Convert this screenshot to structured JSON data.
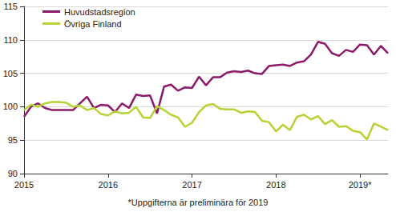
{
  "chart_data": {
    "type": "line",
    "subtitle": "*Uppgifterna är preliminära för 2019",
    "categories": [
      "2015",
      null,
      null,
      null,
      null,
      null,
      null,
      null,
      null,
      null,
      null,
      null,
      "2016",
      null,
      null,
      null,
      null,
      null,
      null,
      null,
      null,
      null,
      null,
      null,
      "2017",
      null,
      null,
      null,
      null,
      null,
      null,
      null,
      null,
      null,
      null,
      null,
      "2018",
      null,
      null,
      null,
      null,
      null,
      null,
      null,
      null,
      null,
      null,
      null,
      "2019*",
      null,
      null,
      null,
      null
    ],
    "series": [
      {
        "name": "Huvudstadsregion",
        "color": "#8b1a6b",
        "values": [
          98.5,
          100.0,
          100.5,
          99.8,
          99.5,
          99.5,
          99.5,
          99.5,
          100.5,
          101.5,
          99.8,
          100.3,
          100.2,
          99.2,
          100.5,
          99.8,
          101.8,
          101.6,
          101.7,
          99.0,
          103.0,
          103.3,
          102.4,
          102.9,
          102.8,
          104.5,
          103.2,
          104.4,
          104.4,
          105.1,
          105.3,
          105.2,
          105.4,
          105.0,
          104.9,
          106.1,
          106.2,
          106.3,
          106.1,
          106.6,
          106.8,
          107.8,
          109.7,
          109.4,
          108.0,
          107.6,
          108.5,
          108.2,
          109.3,
          109.2,
          107.8,
          109.1,
          108.0
        ]
      },
      {
        "name": "Övriga Finland",
        "color": "#b5d334",
        "values": [
          99.5,
          100.3,
          100.0,
          100.5,
          100.7,
          100.7,
          100.6,
          100.0,
          100.2,
          99.5,
          99.8,
          98.9,
          98.7,
          99.3,
          99.0,
          99.1,
          100.0,
          98.4,
          98.3,
          100.1,
          99.5,
          98.8,
          98.4,
          97.0,
          97.6,
          99.2,
          100.2,
          100.4,
          99.7,
          99.6,
          99.6,
          99.1,
          99.3,
          99.2,
          97.9,
          97.7,
          96.3,
          97.3,
          96.5,
          98.5,
          98.8,
          98.1,
          98.6,
          97.4,
          98.0,
          97.0,
          97.1,
          96.4,
          96.2,
          95.1,
          97.5,
          97.0,
          96.5
        ]
      }
    ],
    "ylim": [
      90,
      115
    ],
    "yticks": [
      90,
      95,
      100,
      105,
      110,
      115
    ],
    "grid": true,
    "legend": "top-left"
  }
}
